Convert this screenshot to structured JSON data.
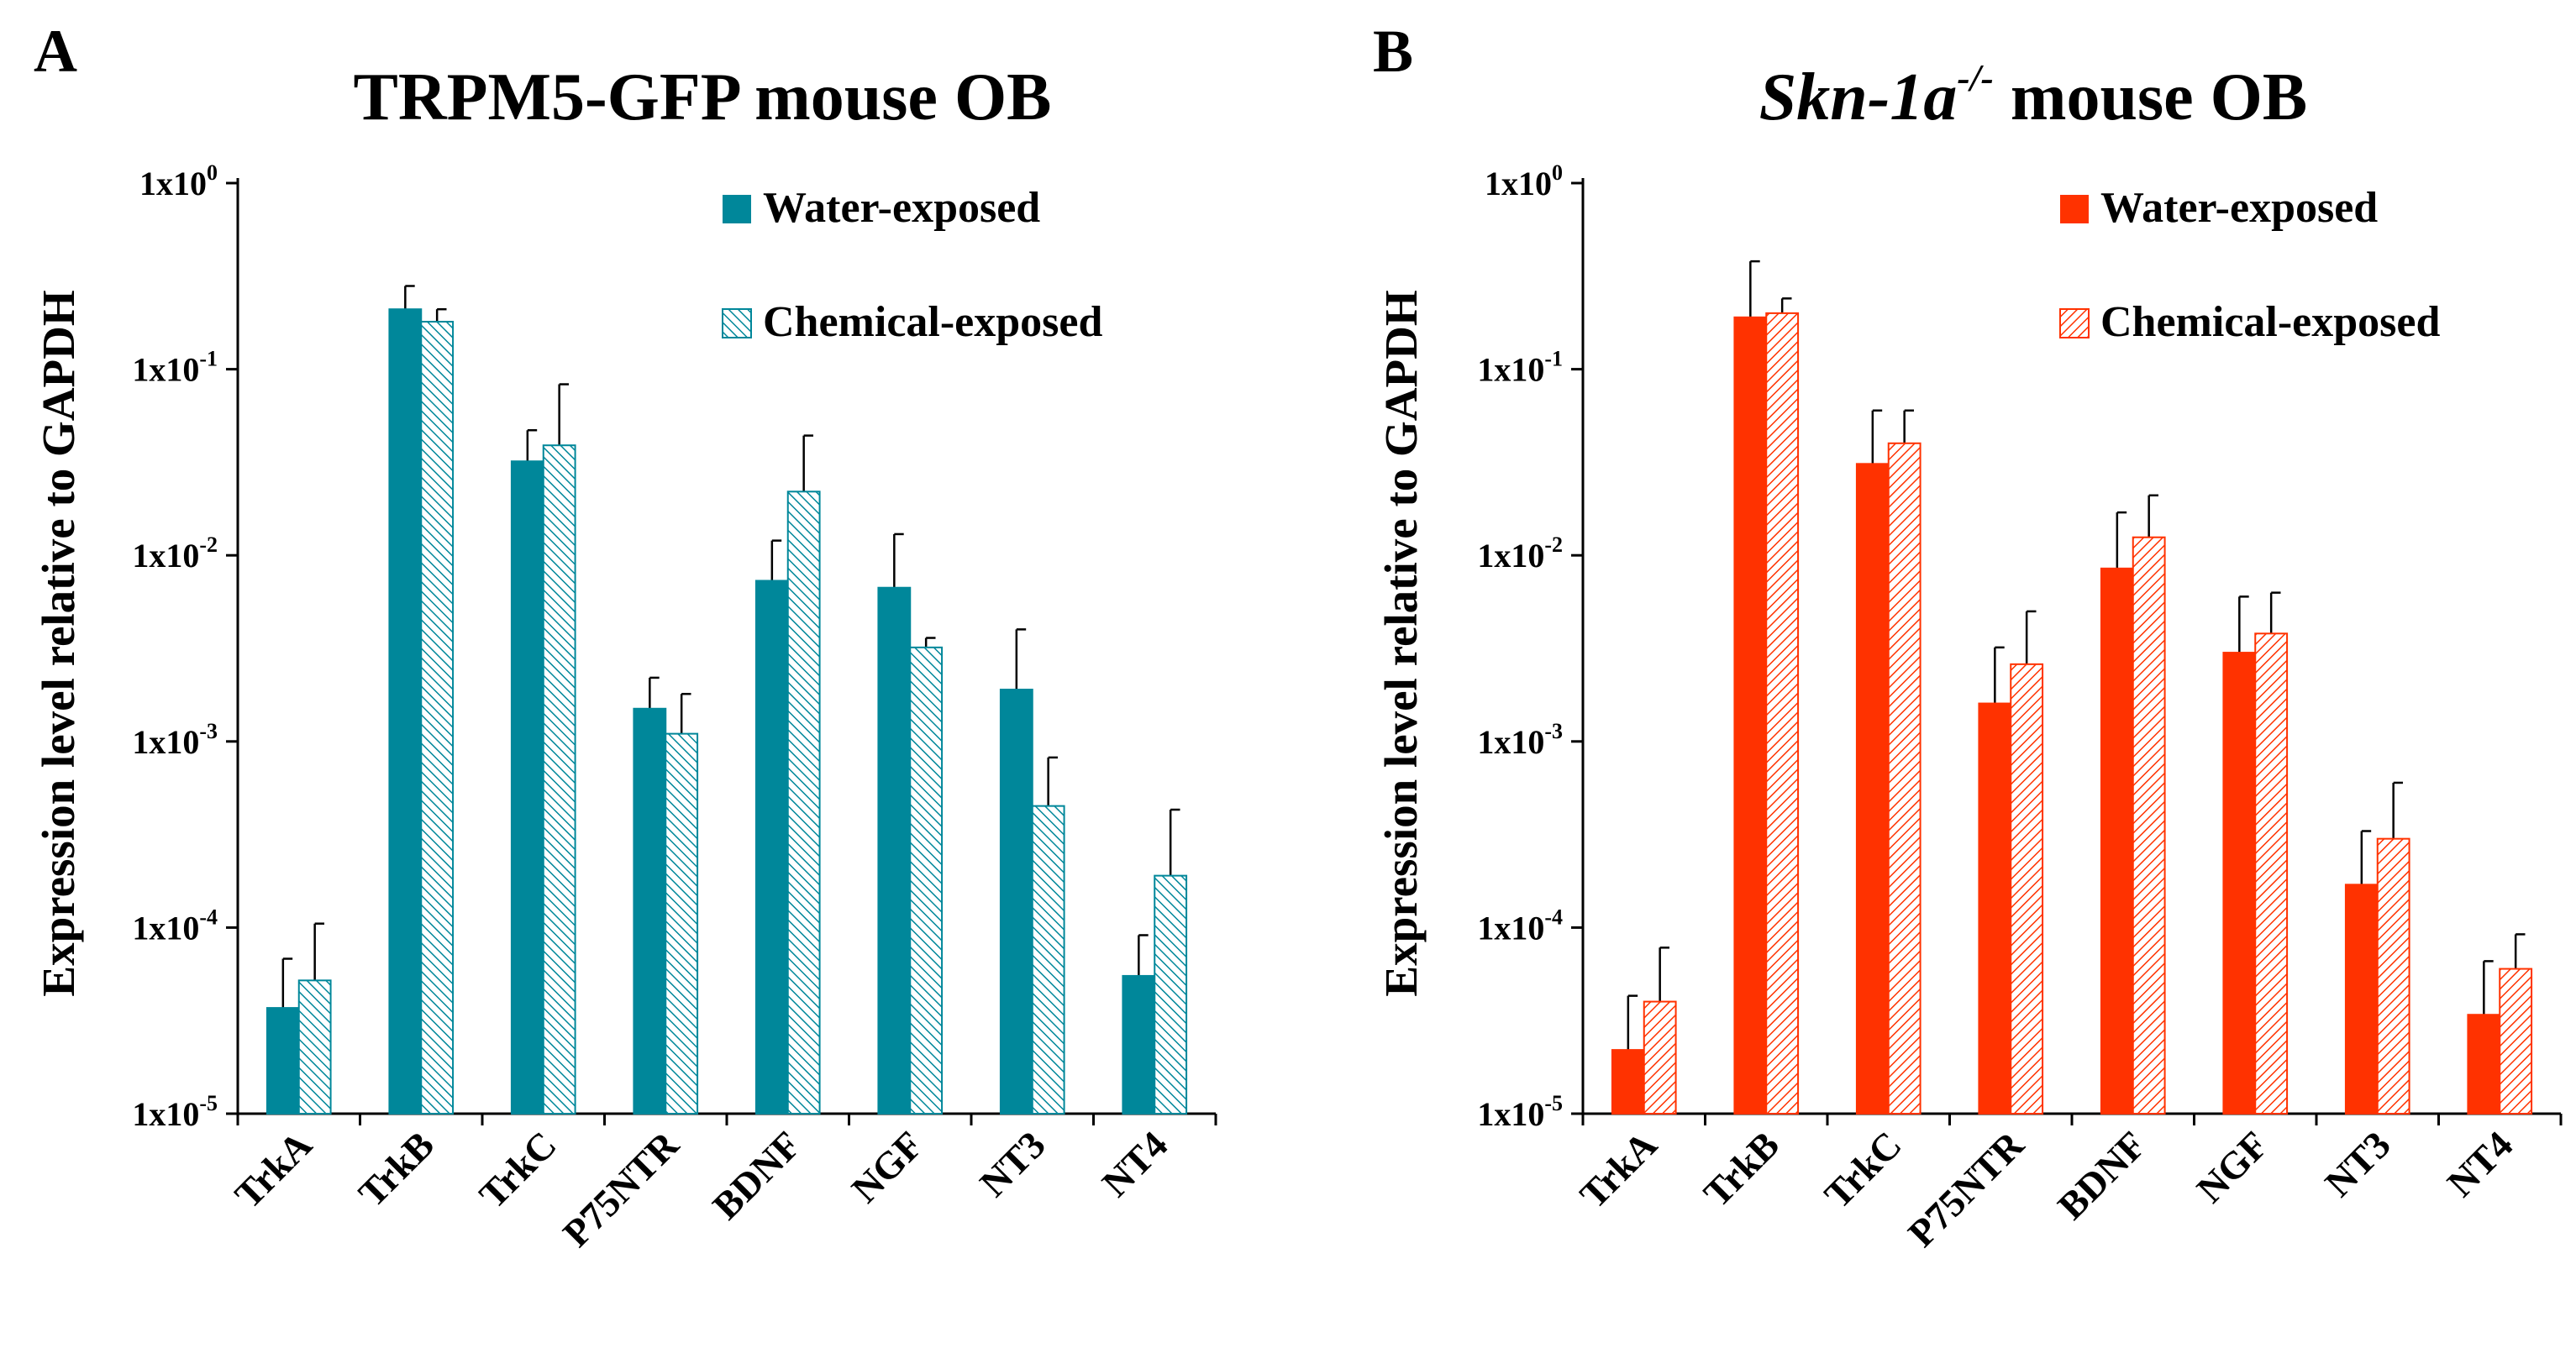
{
  "colors": {
    "panel_a": "#00879a",
    "panel_b": "#ff3200"
  },
  "chart_data": [
    {
      "type": "bar",
      "panel_label": "A",
      "title_parts": [
        "TRPM5-GFP mouse OB"
      ],
      "ylabel": "Expression level relative to GAPDH",
      "yscale": "log",
      "ylim": [
        1e-05,
        1
      ],
      "ytick_labels": [
        {
          "mant": "1x10",
          "exp": "0"
        },
        {
          "mant": "1x10",
          "exp": "-1"
        },
        {
          "mant": "1x10",
          "exp": "-2"
        },
        {
          "mant": "1x10",
          "exp": "-3"
        },
        {
          "mant": "1x10",
          "exp": "-4"
        },
        {
          "mant": "1x10",
          "exp": "-5"
        }
      ],
      "categories": [
        "TrkA",
        "TrkB",
        "TrkC",
        "P75NTR",
        "BDNF",
        "NGF",
        "NT3",
        "NT4"
      ],
      "legend_position": "top-right",
      "series": [
        {
          "name": "Water-exposed",
          "style": "solid",
          "values": [
            3.7e-05,
            0.21,
            0.032,
            0.0015,
            0.0073,
            0.0067,
            0.0019,
            5.5e-05
          ],
          "error_tops": [
            6.8e-05,
            0.28,
            0.047,
            0.0022,
            0.012,
            0.013,
            0.004,
            9.1e-05
          ]
        },
        {
          "name": "Chemical-exposed",
          "style": "hatched",
          "values": [
            5.2e-05,
            0.18,
            0.039,
            0.0011,
            0.022,
            0.0032,
            0.00045,
            0.00019
          ],
          "error_tops": [
            0.000105,
            0.21,
            0.083,
            0.0018,
            0.044,
            0.0036,
            0.00082,
            0.00043
          ]
        }
      ]
    },
    {
      "type": "bar",
      "panel_label": "B",
      "title_parts": [
        "Skn-1a",
        "-/-",
        " mouse OB"
      ],
      "ylabel": "Expression level relative to GAPDH",
      "yscale": "log",
      "ylim": [
        1e-05,
        1
      ],
      "ytick_labels": [
        {
          "mant": "1x10",
          "exp": "0"
        },
        {
          "mant": "1x10",
          "exp": "-1"
        },
        {
          "mant": "1x10",
          "exp": "-2"
        },
        {
          "mant": "1x10",
          "exp": "-3"
        },
        {
          "mant": "1x10",
          "exp": "-4"
        },
        {
          "mant": "1x10",
          "exp": "-5"
        }
      ],
      "categories": [
        "TrkA",
        "TrkB",
        "TrkC",
        "P75NTR",
        "BDNF",
        "NGF",
        "NT3",
        "NT4"
      ],
      "legend_position": "top-right",
      "series": [
        {
          "name": "Water-exposed",
          "style": "solid",
          "values": [
            2.2e-05,
            0.19,
            0.031,
            0.0016,
            0.0085,
            0.003,
            0.00017,
            3.4e-05
          ],
          "error_tops": [
            4.3e-05,
            0.38,
            0.06,
            0.0032,
            0.017,
            0.006,
            0.00033,
            6.6e-05
          ]
        },
        {
          "name": "Chemical-exposed",
          "style": "hatched",
          "values": [
            4e-05,
            0.2,
            0.04,
            0.0026,
            0.0125,
            0.0038,
            0.0003,
            6e-05
          ],
          "error_tops": [
            7.8e-05,
            0.24,
            0.06,
            0.005,
            0.021,
            0.0063,
            0.0006,
            9.2e-05
          ]
        }
      ]
    }
  ]
}
